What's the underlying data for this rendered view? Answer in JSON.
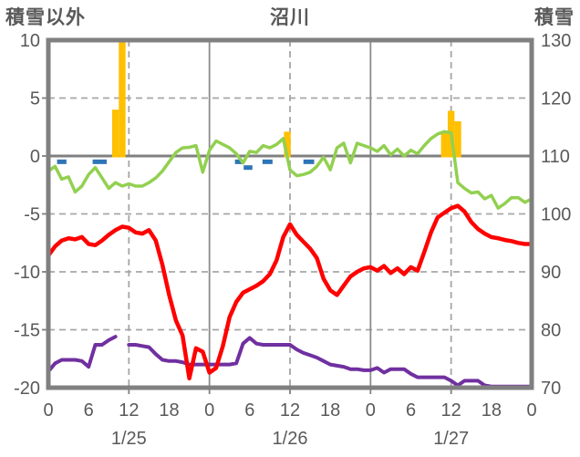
{
  "header": {
    "left_axis_title": "積雪以外",
    "chart_title": "沼川",
    "right_axis_title": "積雪"
  },
  "colors": {
    "border": "#808080",
    "zero_line": "#808080",
    "grid": "#A6A6A6",
    "day_line": "#8C8C8C",
    "text": "#595959"
  },
  "chart_data": {
    "type": "bar+line combo",
    "title": "沼川",
    "x_axis": {
      "unit": "hour",
      "range": [
        0,
        72
      ],
      "tick_step": 6,
      "tick_labels": [
        "0",
        "6",
        "12",
        "18",
        "0",
        "6",
        "12",
        "18",
        "0",
        "6",
        "12",
        "18",
        "0"
      ],
      "day_labels": [
        {
          "label": "1/25",
          "hour": 12
        },
        {
          "label": "1/26",
          "hour": 36
        },
        {
          "label": "1/27",
          "hour": 60
        }
      ],
      "dashed_gridline_hours": [
        12,
        36,
        60
      ],
      "solid_gridline_hours": [
        24,
        48
      ]
    },
    "left_axis": {
      "title": "積雪以外",
      "min": -20,
      "max": 10,
      "tick_values": [
        10,
        5,
        0,
        -5,
        -10,
        -15,
        -20
      ],
      "tick_labels": [
        "10",
        "5",
        "0",
        "-5",
        "-10",
        "-15",
        "-20"
      ],
      "dashed_gridline_values": [
        5,
        -5,
        -10,
        -15
      ],
      "zero_line_value": 0
    },
    "right_axis": {
      "title": "積雪",
      "min": 70,
      "max": 130,
      "tick_labels": [
        "130",
        "120",
        "110",
        "100",
        "90",
        "80",
        "70"
      ]
    },
    "series": [
      {
        "id": "orange-bars",
        "type": "bar",
        "color": "#FFC000",
        "bar_width_hours": 1,
        "points": [
          {
            "hour": 10,
            "value": 4.0
          },
          {
            "hour": 11,
            "value": 10.0
          },
          {
            "hour": 35.6,
            "value": 2.1
          },
          {
            "hour": 59,
            "value": 2.1
          },
          {
            "hour": 60,
            "value": 3.9
          },
          {
            "hour": 61,
            "value": 3.0
          }
        ]
      },
      {
        "id": "blue-dash-marks",
        "type": "dash",
        "color": "#2E75B6",
        "thickness": 5,
        "segments": [
          {
            "from": 1.3,
            "to": 2.7,
            "value": -0.5
          },
          {
            "from": 6.6,
            "to": 8.7,
            "value": -0.5
          },
          {
            "from": 27.8,
            "to": 29.1,
            "value": -0.5
          },
          {
            "from": 29.1,
            "to": 30.4,
            "value": -1.0
          },
          {
            "from": 31.9,
            "to": 33.4,
            "value": -0.5
          },
          {
            "from": 38.0,
            "to": 39.6,
            "value": -0.5
          }
        ]
      },
      {
        "id": "purple-line",
        "type": "line",
        "color": "#7030A0",
        "width": 4,
        "x_start": 0,
        "x_step": 1,
        "values": [
          -18.6,
          -17.9,
          -17.6,
          -17.6,
          -17.6,
          -17.7,
          -18.2,
          -16.3,
          -16.3,
          -15.9,
          -15.6,
          null,
          -16.3,
          -16.3,
          -16.4,
          -16.5,
          -17.1,
          -17.6,
          -17.7,
          -17.7,
          -17.8,
          -18.0,
          -18.0,
          -18.0,
          -18.0,
          -18.0,
          -18.0,
          -18.0,
          -17.9,
          -16.2,
          -15.7,
          -16.2,
          -16.3,
          -16.3,
          -16.3,
          -16.3,
          -16.3,
          -16.7,
          -17.0,
          -17.2,
          -17.4,
          -17.7,
          -18.0,
          -18.1,
          -18.2,
          -18.4,
          -18.4,
          -18.5,
          -18.5,
          -18.3,
          -18.7,
          -18.4,
          -18.4,
          -18.4,
          -18.8,
          -19.1,
          -19.1,
          -19.1,
          -19.1,
          -19.1,
          -19.4,
          -19.8,
          -19.4,
          -19.4,
          -19.4,
          -19.8,
          -19.9,
          -19.9,
          -19.9,
          -19.9,
          -19.9,
          -19.9,
          -19.9
        ]
      },
      {
        "id": "red-line",
        "type": "line",
        "color": "#FF0000",
        "width": 4.5,
        "x_start": 0,
        "x_step": 1,
        "values": [
          -8.6,
          -7.8,
          -7.3,
          -7.1,
          -7.2,
          -7.0,
          -7.6,
          -7.7,
          -7.3,
          -6.8,
          -6.4,
          -6.1,
          -6.2,
          -6.6,
          -6.7,
          -6.4,
          -7.3,
          -9.4,
          -12.0,
          -14.2,
          -15.5,
          -19.2,
          -16.6,
          -16.9,
          -18.7,
          -18.3,
          -16.4,
          -13.9,
          -12.6,
          -11.8,
          -11.5,
          -11.2,
          -10.8,
          -10.2,
          -9.0,
          -7.0,
          -5.9,
          -6.8,
          -7.4,
          -8.0,
          -8.8,
          -10.6,
          -11.6,
          -12.0,
          -11.2,
          -10.4,
          -10.0,
          -9.7,
          -9.6,
          -9.9,
          -9.5,
          -10.1,
          -9.7,
          -10.2,
          -9.6,
          -9.9,
          -8.3,
          -6.6,
          -5.3,
          -4.9,
          -4.5,
          -4.3,
          -4.8,
          -5.7,
          -6.3,
          -6.7,
          -7.0,
          -7.1,
          -7.25,
          -7.35,
          -7.5,
          -7.6,
          -7.6
        ]
      },
      {
        "id": "green-line",
        "type": "line",
        "color": "#92D050",
        "width": 3.5,
        "x_start": 0,
        "x_step": 1,
        "values": [
          -1.3,
          -0.9,
          -2.0,
          -1.8,
          -3.1,
          -2.6,
          -1.6,
          -1.0,
          -1.9,
          -2.8,
          -2.3,
          -2.6,
          -2.4,
          -2.6,
          -2.6,
          -2.3,
          -1.9,
          -1.3,
          -0.5,
          0.3,
          0.7,
          0.75,
          0.9,
          -1.4,
          0.5,
          1.3,
          1.0,
          0.7,
          0.2,
          -0.6,
          0.4,
          0.3,
          0.9,
          0.7,
          1.0,
          1.5,
          -1.2,
          -1.7,
          -1.6,
          -1.4,
          -0.9,
          -0.1,
          -1.2,
          0.7,
          1.1,
          -0.6,
          1.1,
          0.9,
          0.7,
          0.4,
          0.9,
          0.1,
          0.6,
          0.0,
          0.5,
          0.2,
          0.9,
          1.5,
          1.9,
          2.1,
          2.0,
          -2.3,
          -2.8,
          -3.2,
          -3.1,
          -3.7,
          -3.4,
          -4.5,
          -4.1,
          -3.6,
          -3.6,
          -4.0,
          -3.7
        ]
      }
    ]
  }
}
